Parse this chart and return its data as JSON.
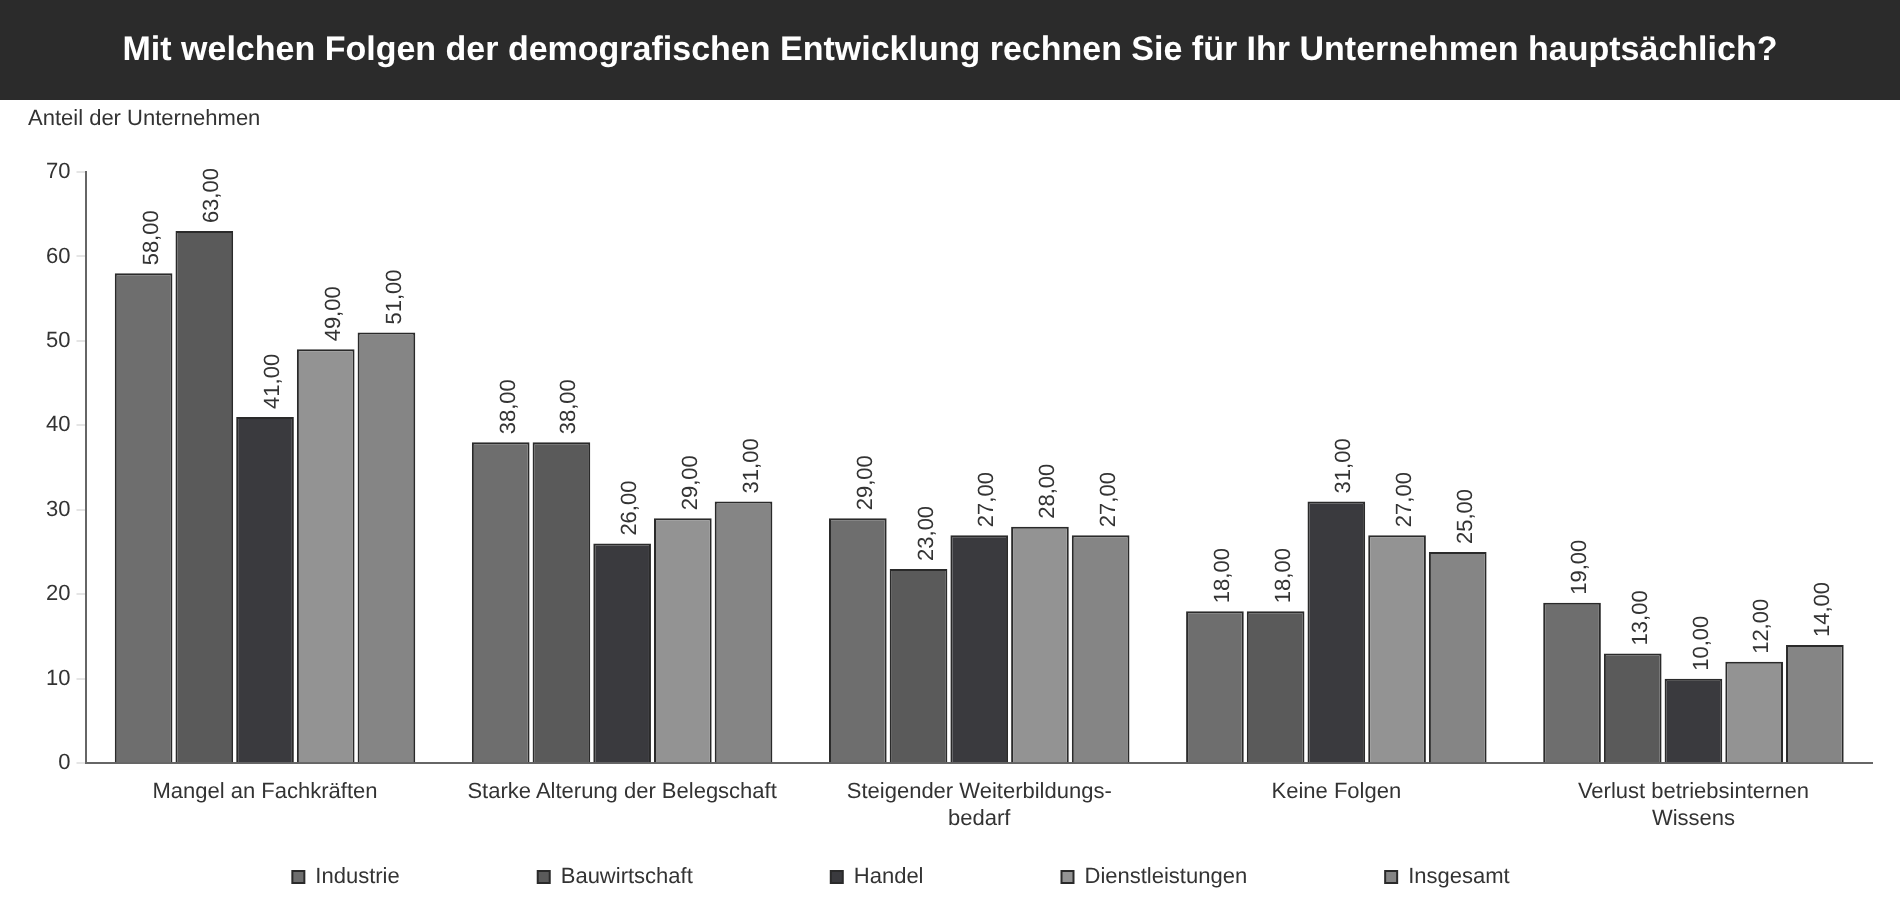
{
  "chart_data": {
    "type": "bar",
    "title": "Mit welchen Folgen der demografischen Entwicklung rechnen Sie für Ihr Unternehmen hauptsächlich?",
    "ylabel": "Anteil der Unternehmen",
    "categories": [
      "Mangel an Fachkräften",
      "Starke Alterung der Belegschaft",
      "Steigender Weiterbildungs-bedarf",
      "Keine Folgen",
      "Verlust betriebsinternen Wissens"
    ],
    "series": [
      {
        "name": "Industrie",
        "color": "#6e6e6e",
        "values": [
          58,
          38,
          29,
          18,
          19
        ],
        "value_labels": [
          "58,00",
          "38,00",
          "29,00",
          "18,00",
          "19,00"
        ]
      },
      {
        "name": "Bauwirtschaft",
        "color": "#5a5a5a",
        "values": [
          63,
          38,
          23,
          18,
          13
        ],
        "value_labels": [
          "63,00",
          "38,00",
          "23,00",
          "18,00",
          "13,00"
        ]
      },
      {
        "name": "Handel",
        "color": "#3a3a3e",
        "values": [
          41,
          26,
          27,
          31,
          10
        ],
        "value_labels": [
          "41,00",
          "26,00",
          "27,00",
          "31,00",
          "10,00"
        ]
      },
      {
        "name": "Dienstleistungen",
        "color": "#939393",
        "values": [
          49,
          29,
          28,
          27,
          12
        ],
        "value_labels": [
          "49,00",
          "29,00",
          "28,00",
          "27,00",
          "12,00"
        ]
      },
      {
        "name": "Insgesamt",
        "color": "#858585",
        "values": [
          51,
          31,
          27,
          25,
          14
        ],
        "value_labels": [
          "51,00",
          "31,00",
          "27,00",
          "25,00",
          "14,00"
        ]
      }
    ],
    "ylim": [
      0,
      70
    ],
    "yticks": [
      0,
      10,
      20,
      30,
      40,
      50,
      60,
      70
    ],
    "grid": false,
    "legend": "bottom"
  }
}
